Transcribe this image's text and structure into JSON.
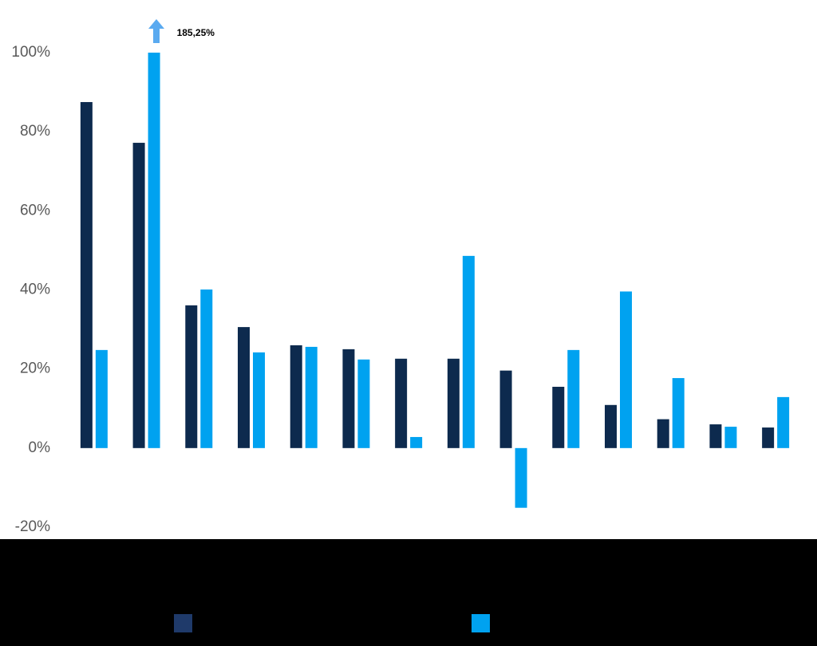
{
  "chart_data": {
    "type": "bar",
    "categories": [
      null,
      null,
      null,
      null,
      null,
      null,
      null,
      null,
      null,
      null,
      null,
      null,
      null,
      null
    ],
    "series": [
      {
        "color": "#0d2a4e",
        "values": [
          87.5,
          77.2,
          36.1,
          30.6,
          26,
          25,
          22.6,
          22.6,
          19.6,
          15.5,
          10.9,
          7.3,
          6,
          5.2
        ]
      },
      {
        "color": "#00a2f0",
        "values": [
          24.8,
          185.25,
          40.1,
          24.2,
          25.6,
          22.4,
          2.8,
          48.6,
          -15.1,
          24.8,
          39.6,
          17.7,
          5.4,
          12.9
        ],
        "value_labels": [
          null,
          "185,25%",
          null,
          null,
          null,
          null,
          null,
          null,
          null,
          null,
          null,
          null,
          null,
          null
        ]
      }
    ],
    "ylim": [
      -20,
      100
    ],
    "yticks": [
      {
        "value": -20,
        "label": "-20%"
      },
      {
        "value": 0,
        "label": "0%"
      },
      {
        "value": 20,
        "label": "20%"
      },
      {
        "value": 40,
        "label": "40%"
      },
      {
        "value": 60,
        "label": "60%"
      },
      {
        "value": 80,
        "label": "80%"
      },
      {
        "value": 100,
        "label": "100%"
      }
    ],
    "grid": false
  }
}
